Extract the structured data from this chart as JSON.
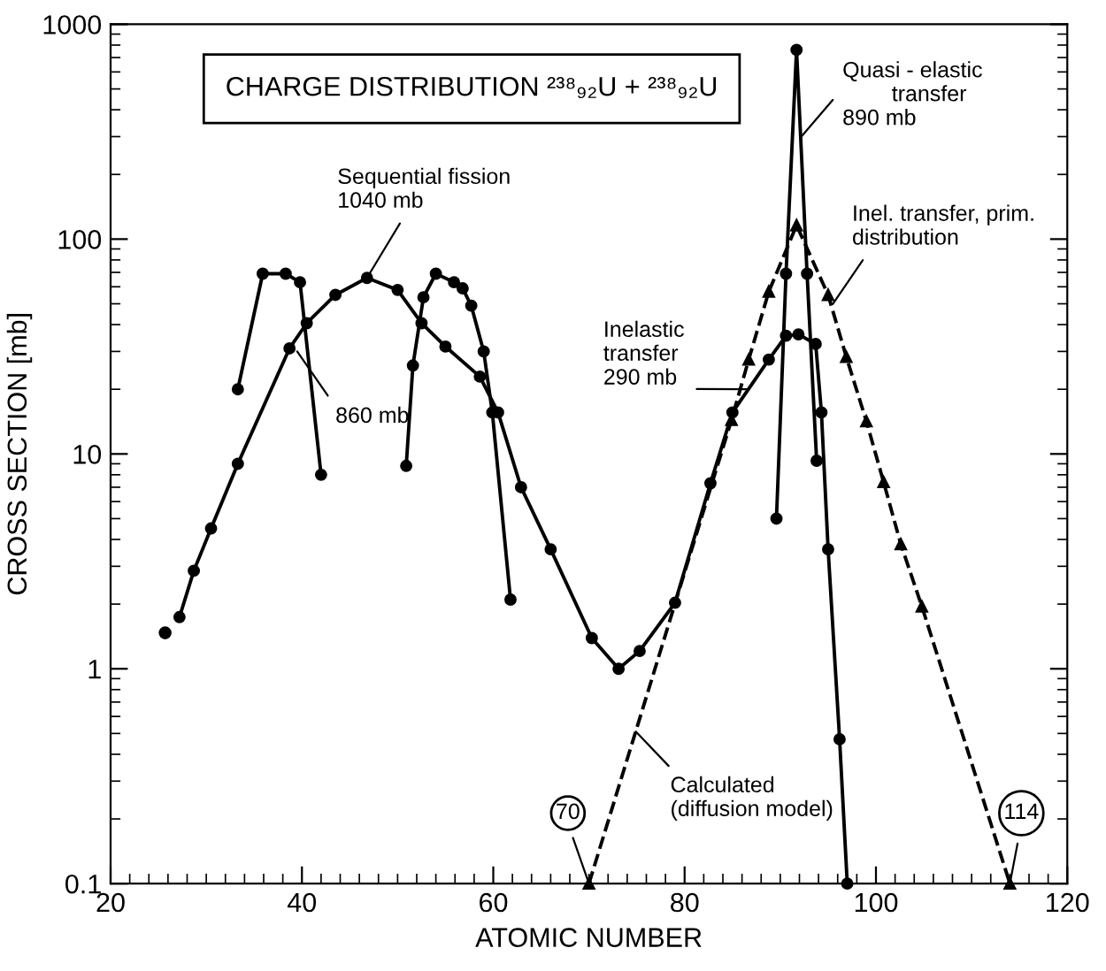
{
  "chart_data": {
    "type": "line",
    "title": "CHARGE DISTRIBUTION ²³⁸₉₂U + ²³⁸₉₂U",
    "xlabel": "ATOMIC NUMBER",
    "ylabel": "CROSS SECTION [mb]",
    "log": "y",
    "xlim": [
      20,
      120
    ],
    "ylim": [
      0.1,
      1000
    ],
    "xticks": [
      20,
      40,
      60,
      80,
      100,
      120
    ],
    "yticks": [
      0.1,
      1,
      10,
      100,
      1000
    ],
    "grid": false,
    "legend": false,
    "series": [
      {
        "color": "#000000",
        "marker": "circle",
        "line_style": "solid",
        "x": [
          27.2,
          28.7,
          30.5,
          33.3,
          38.7,
          40.5,
          43.5,
          46.8,
          50,
          52.5,
          55,
          58.6,
          60.5,
          62.9,
          66,
          70.3,
          73.1,
          75.3,
          79,
          82.7,
          85,
          88.8,
          90.6,
          91.9,
          93.7,
          94.3,
          95,
          96.2,
          97
        ],
        "values": [
          1.74,
          2.86,
          4.5,
          9,
          31,
          40.6,
          55,
          66,
          58,
          40.6,
          31.6,
          22.9,
          15.6,
          7,
          3.6,
          1.39,
          1,
          1.21,
          2.03,
          7.3,
          15.6,
          27.5,
          35.5,
          36,
          32.5,
          15.6,
          3.6,
          0.47,
          0.1
        ]
      },
      {
        "type": "scatter",
        "color": "#000000",
        "marker": "circle",
        "x": [
          25.7
        ],
        "values": [
          1.47
        ]
      },
      {
        "color": "#000000",
        "marker": "circle",
        "line_style": "solid",
        "x": [
          33.3,
          35.9,
          38.3,
          39.8,
          42
        ],
        "values": [
          20,
          69,
          69,
          63,
          8
        ]
      },
      {
        "color": "#000000",
        "marker": "circle",
        "line_style": "solid",
        "x": [
          50.9,
          51.6,
          52.7,
          54,
          55.9,
          56.8,
          57.7,
          59,
          59.9,
          61.8
        ],
        "values": [
          8.8,
          25.8,
          53.6,
          69,
          63,
          59,
          49,
          30,
          15.6,
          2.1
        ]
      },
      {
        "color": "#000000",
        "marker": "circle",
        "line_style": "solid",
        "x": [
          89.6,
          90.6,
          91.7,
          92.8,
          93.8
        ],
        "values": [
          5,
          69,
          760,
          69,
          9.3
        ]
      },
      {
        "color": "#000000",
        "marker": "triangle",
        "line_style": "dashed",
        "x": [
          70,
          84.9,
          86.7,
          88.8,
          91.7,
          95,
          96.9,
          99,
          100.8,
          102.6,
          104.8,
          114
        ],
        "values": [
          0.1,
          14.4,
          27.5,
          57,
          116,
          55,
          28.3,
          14.2,
          7.4,
          3.8,
          1.95,
          0.1
        ]
      }
    ],
    "annotations": [
      {
        "text": "Sequential fission\n1040 mb",
        "x": 46.8,
        "y": 66
      },
      {
        "text": "860 mb",
        "x": 39.5,
        "y": 30
      },
      {
        "text": "Quasi - elastic\n        transfer\n890 mb",
        "x": 92.2,
        "y": 300
      },
      {
        "text": "Inel. transfer, prim.\ndistribution",
        "x": 95.5,
        "y": 50
      },
      {
        "text": "Inelastic\ntransfer\n290 mb",
        "x": 86.5,
        "y": 20
      },
      {
        "text": "Calculated\n(diffusion model)",
        "x": 74.9,
        "y": 0.51
      },
      {
        "text": "70",
        "x": 70,
        "y": 0.1
      },
      {
        "text": "114",
        "x": 114,
        "y": 0.1
      }
    ]
  }
}
